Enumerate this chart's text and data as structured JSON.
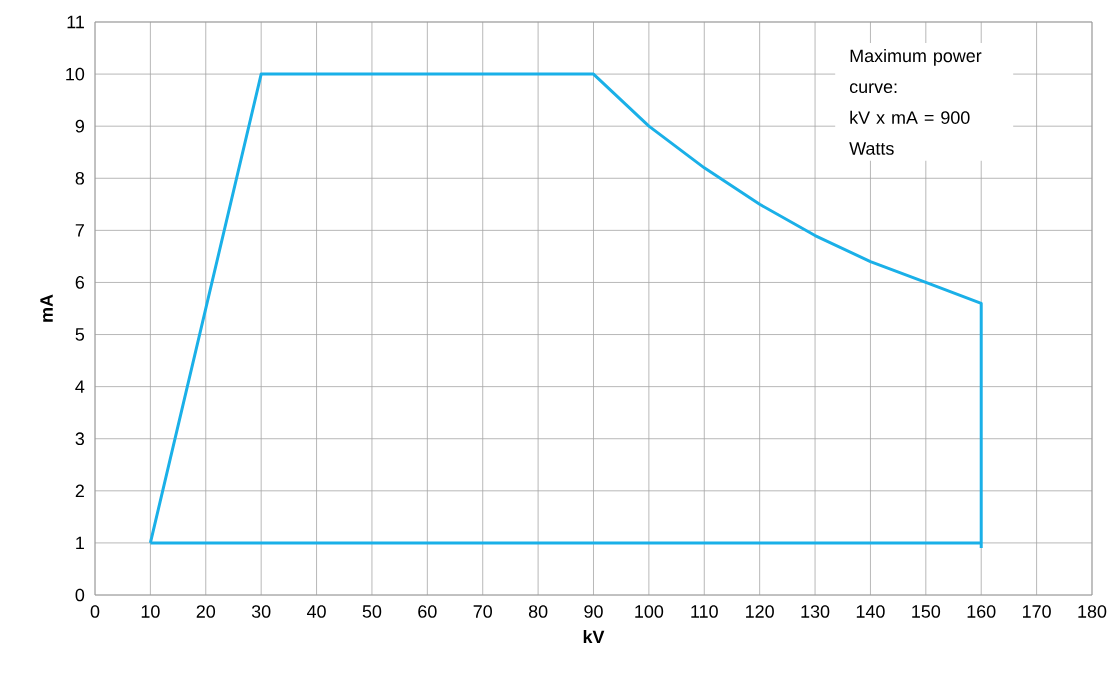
{
  "chart_data": {
    "type": "line",
    "xlabel": "kV",
    "ylabel": "mA",
    "series": [
      {
        "color": "#1ab0e8",
        "x": [
          10,
          30,
          90,
          100,
          110,
          120,
          130,
          140,
          150,
          160,
          160
        ],
        "values": [
          1,
          10,
          10,
          9,
          8.2,
          7.5,
          6.9,
          6.4,
          6,
          5.6,
          0.9
        ]
      },
      {
        "color": "#1ab0e8",
        "x": [
          10,
          160
        ],
        "values": [
          1,
          1
        ]
      }
    ],
    "line_style": "solid",
    "grid": true,
    "xlim": [
      0,
      180
    ],
    "ylim": [
      0,
      11
    ],
    "xticks": [
      0,
      10,
      20,
      30,
      40,
      50,
      60,
      70,
      80,
      90,
      100,
      110,
      120,
      130,
      140,
      150,
      160,
      170,
      180
    ],
    "yticks": [
      0,
      1,
      2,
      3,
      4,
      5,
      6,
      7,
      8,
      9,
      10,
      11
    ],
    "annotations": [
      "Maximum power curve:",
      "kV x mA = 900 Watts"
    ]
  }
}
